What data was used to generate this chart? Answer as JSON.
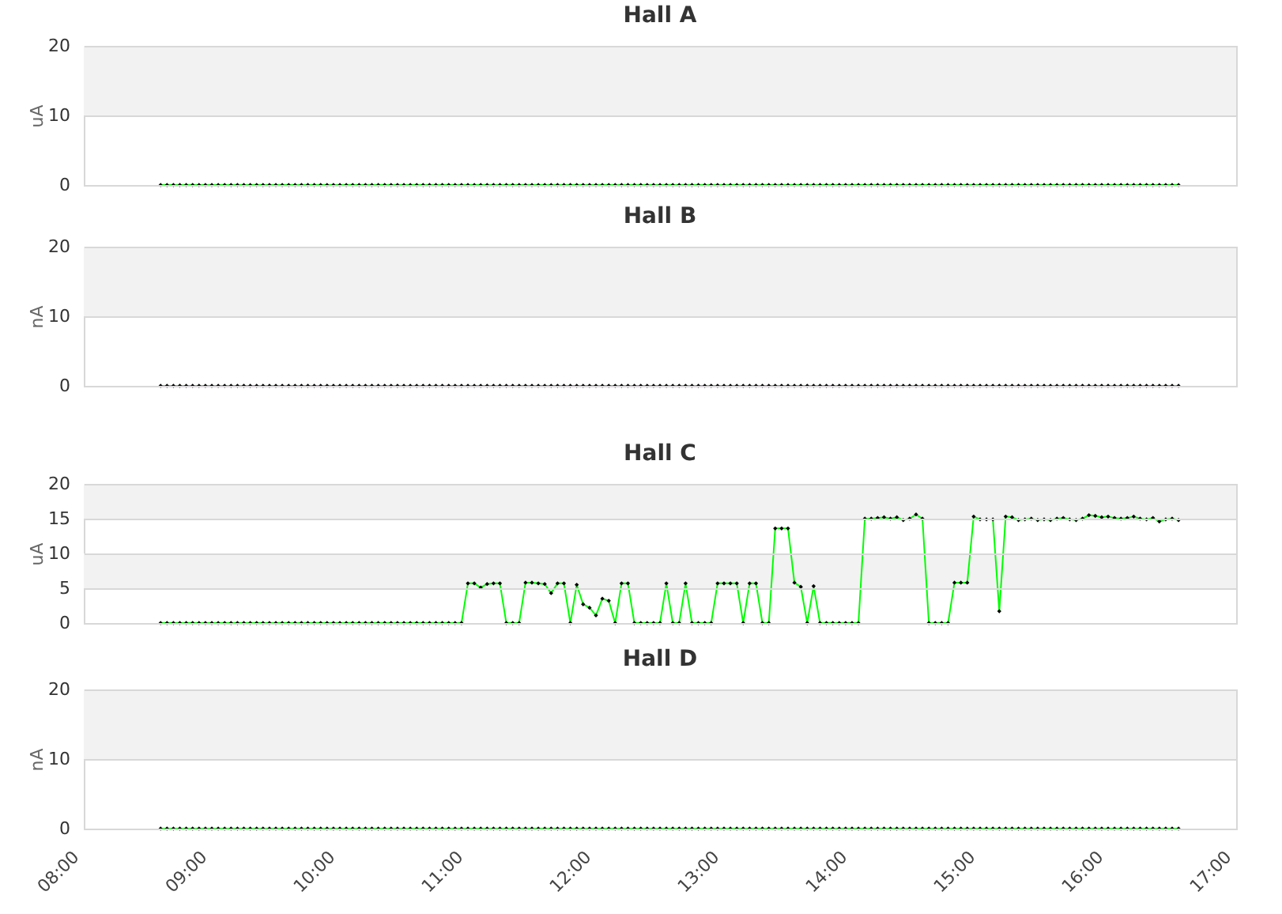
{
  "chart_data": [
    {
      "type": "line",
      "title": "Hall A",
      "ylabel": "uA",
      "xlim": [
        8,
        17
      ],
      "ylim": [
        0,
        20
      ],
      "yticks": [
        0,
        10,
        20
      ],
      "grid": "y",
      "tick_labels": "y",
      "marker": "diamond",
      "bands": [
        {
          "axis": "y",
          "from": 10,
          "to": 20,
          "color": "#f2f2f2"
        }
      ],
      "x": [
        8.6,
        8.65,
        8.7,
        8.75,
        8.8,
        8.85,
        8.9,
        8.95,
        9,
        9.05,
        9.1,
        9.15,
        9.2,
        9.25,
        9.3,
        9.35,
        9.4,
        9.45,
        9.5,
        9.55,
        9.6,
        9.65,
        9.7,
        9.75,
        9.8,
        9.85,
        9.9,
        9.95,
        10,
        10.05,
        10.1,
        10.15,
        10.2,
        10.25,
        10.3,
        10.35,
        10.4,
        10.45,
        10.5,
        10.55,
        10.6,
        10.65,
        10.7,
        10.75,
        10.8,
        10.85,
        10.9,
        10.95,
        11,
        11.05,
        11.1,
        11.15,
        11.2,
        11.25,
        11.3,
        11.35,
        11.4,
        11.45,
        11.5,
        11.55,
        11.6,
        11.65,
        11.7,
        11.75,
        11.8,
        11.85,
        11.9,
        11.95,
        12,
        12.05,
        12.1,
        12.15,
        12.2,
        12.25,
        12.3,
        12.35,
        12.4,
        12.45,
        12.5,
        12.55,
        12.6,
        12.65,
        12.7,
        12.75,
        12.8,
        12.85,
        12.9,
        12.95,
        13,
        13.05,
        13.1,
        13.15,
        13.2,
        13.25,
        13.3,
        13.35,
        13.4,
        13.45,
        13.5,
        13.55,
        13.6,
        13.65,
        13.7,
        13.75,
        13.8,
        13.85,
        13.9,
        13.95,
        14,
        14.05,
        14.1,
        14.15,
        14.2,
        14.25,
        14.3,
        14.35,
        14.4,
        14.45,
        14.5,
        14.55,
        14.6,
        14.65,
        14.7,
        14.75,
        14.8,
        14.85,
        14.9,
        14.95,
        15,
        15.05,
        15.1,
        15.15,
        15.2,
        15.25,
        15.3,
        15.35,
        15.4,
        15.45,
        15.5,
        15.55,
        15.6,
        15.65,
        15.7,
        15.75,
        15.8,
        15.85,
        15.9,
        15.95,
        16,
        16.05,
        16.1,
        16.15,
        16.2,
        16.25,
        16.3,
        16.35,
        16.4,
        16.45,
        16.5,
        16.55
      ],
      "series": [
        {
          "color": "#00ff00",
          "values": [
            0,
            0,
            0,
            0,
            0,
            0,
            0,
            0,
            0,
            0,
            0,
            0,
            0,
            0,
            0,
            0,
            0,
            0,
            0,
            0,
            0,
            0,
            0,
            0,
            0,
            0,
            0,
            0,
            0,
            0,
            0,
            0,
            0,
            0,
            0,
            0,
            0,
            0,
            0,
            0,
            0,
            0,
            0,
            0,
            0,
            0,
            0,
            0,
            0,
            0,
            0,
            0,
            0,
            0,
            0,
            0,
            0,
            0,
            0,
            0,
            0,
            0,
            0,
            0,
            0,
            0,
            0,
            0,
            0,
            0,
            0,
            0,
            0,
            0,
            0,
            0,
            0,
            0,
            0,
            0,
            0,
            0,
            0,
            0,
            0,
            0,
            0,
            0,
            0,
            0,
            0,
            0,
            0,
            0,
            0,
            0,
            0,
            0,
            0,
            0,
            0,
            0,
            0,
            0,
            0,
            0,
            0,
            0,
            0,
            0,
            0,
            0,
            0,
            0,
            0,
            0,
            0,
            0,
            0,
            0,
            0,
            0,
            0,
            0,
            0,
            0,
            0,
            0,
            0,
            0,
            0,
            0,
            0,
            0,
            0,
            0,
            0,
            0,
            0,
            0,
            0,
            0,
            0,
            0,
            0,
            0,
            0,
            0,
            0,
            0,
            0,
            0,
            0,
            0,
            0,
            0,
            0,
            0,
            0,
            0
          ]
        }
      ]
    },
    {
      "type": "line",
      "title": "Hall B",
      "ylabel": "nA",
      "xlim": [
        8,
        17
      ],
      "ylim": [
        0,
        20
      ],
      "yticks": [
        0,
        10,
        20
      ],
      "grid": "y",
      "tick_labels": "y",
      "marker": "diamond",
      "bands": [
        {
          "axis": "y",
          "from": 10,
          "to": 20,
          "color": "#f2f2f2"
        }
      ],
      "x": [
        8.6,
        8.65,
        8.7,
        8.75,
        8.8,
        8.85,
        8.9,
        8.95,
        9,
        9.05,
        9.1,
        9.15,
        9.2,
        9.25,
        9.3,
        9.35,
        9.4,
        9.45,
        9.5,
        9.55,
        9.6,
        9.65,
        9.7,
        9.75,
        9.8,
        9.85,
        9.9,
        9.95,
        10,
        10.05,
        10.1,
        10.15,
        10.2,
        10.25,
        10.3,
        10.35,
        10.4,
        10.45,
        10.5,
        10.55,
        10.6,
        10.65,
        10.7,
        10.75,
        10.8,
        10.85,
        10.9,
        10.95,
        11,
        11.05,
        11.1,
        11.15,
        11.2,
        11.25,
        11.3,
        11.35,
        11.4,
        11.45,
        11.5,
        11.55,
        11.6,
        11.65,
        11.7,
        11.75,
        11.8,
        11.85,
        11.9,
        11.95,
        12,
        12.05,
        12.1,
        12.15,
        12.2,
        12.25,
        12.3,
        12.35,
        12.4,
        12.45,
        12.5,
        12.55,
        12.6,
        12.65,
        12.7,
        12.75,
        12.8,
        12.85,
        12.9,
        12.95,
        13,
        13.05,
        13.1,
        13.15,
        13.2,
        13.25,
        13.3,
        13.35,
        13.4,
        13.45,
        13.5,
        13.55,
        13.6,
        13.65,
        13.7,
        13.75,
        13.8,
        13.85,
        13.9,
        13.95,
        14,
        14.05,
        14.1,
        14.15,
        14.2,
        14.25,
        14.3,
        14.35,
        14.4,
        14.45,
        14.5,
        14.55,
        14.6,
        14.65,
        14.7,
        14.75,
        14.8,
        14.85,
        14.9,
        14.95,
        15,
        15.05,
        15.1,
        15.15,
        15.2,
        15.25,
        15.3,
        15.35,
        15.4,
        15.45,
        15.5,
        15.55,
        15.6,
        15.65,
        15.7,
        15.75,
        15.8,
        15.85,
        15.9,
        15.95,
        16,
        16.05,
        16.1,
        16.15,
        16.2,
        16.25,
        16.3,
        16.35,
        16.4,
        16.45,
        16.5,
        16.55
      ],
      "series": [
        {
          "color": "#00ff00",
          "values": [
            0,
            0,
            0,
            0,
            0,
            0,
            0,
            0,
            0,
            0,
            0,
            0,
            0,
            0,
            0,
            0,
            0,
            0,
            0,
            0,
            0,
            0,
            0,
            0,
            0,
            0,
            0,
            0,
            0,
            0,
            0,
            0,
            0,
            0,
            0,
            0,
            0,
            0,
            0,
            0,
            0,
            0,
            0,
            0,
            0,
            0,
            0,
            0,
            0,
            0,
            0,
            0,
            0,
            0,
            0,
            0,
            0,
            0,
            0,
            0,
            0,
            0,
            0,
            0,
            0,
            0,
            0,
            0,
            0,
            0,
            0,
            0,
            0,
            0,
            0,
            0,
            0,
            0,
            0,
            0,
            0,
            0,
            0,
            0,
            0,
            0,
            0,
            0,
            0,
            0,
            0,
            0,
            0,
            0,
            0,
            0,
            0,
            0,
            0,
            0,
            0,
            0,
            0,
            0,
            0,
            0,
            0,
            0,
            0,
            0,
            0,
            0,
            0,
            0,
            0,
            0,
            0,
            0,
            0,
            0,
            0,
            0,
            0,
            0,
            0,
            0,
            0,
            0,
            0,
            0,
            0,
            0,
            0,
            0,
            0,
            0,
            0,
            0,
            0,
            0,
            0,
            0,
            0,
            0,
            0,
            0,
            0,
            0,
            0,
            0,
            0,
            0,
            0,
            0,
            0,
            0,
            0,
            0,
            0,
            0
          ]
        }
      ]
    },
    {
      "type": "line",
      "title": "Hall C",
      "ylabel": "uA",
      "xlim": [
        8,
        17
      ],
      "ylim": [
        0,
        20
      ],
      "yticks": [
        0,
        5,
        10,
        15,
        20
      ],
      "grid": "y",
      "tick_labels": "y",
      "marker": "diamond",
      "bands": [
        {
          "axis": "y",
          "from": 5,
          "to": 10,
          "color": "#f2f2f2"
        },
        {
          "axis": "y",
          "from": 15,
          "to": 20,
          "color": "#f2f2f2"
        }
      ],
      "x": [
        8.6,
        8.65,
        8.7,
        8.75,
        8.8,
        8.85,
        8.9,
        8.95,
        9,
        9.05,
        9.1,
        9.15,
        9.2,
        9.25,
        9.3,
        9.35,
        9.4,
        9.45,
        9.5,
        9.55,
        9.6,
        9.65,
        9.7,
        9.75,
        9.8,
        9.85,
        9.9,
        9.95,
        10,
        10.05,
        10.1,
        10.15,
        10.2,
        10.25,
        10.3,
        10.35,
        10.4,
        10.45,
        10.5,
        10.55,
        10.6,
        10.65,
        10.7,
        10.75,
        10.8,
        10.85,
        10.9,
        10.95,
        11,
        11.05,
        11.1,
        11.15,
        11.2,
        11.25,
        11.3,
        11.35,
        11.4,
        11.45,
        11.5,
        11.55,
        11.6,
        11.65,
        11.7,
        11.75,
        11.8,
        11.85,
        11.9,
        11.95,
        12,
        12.05,
        12.1,
        12.15,
        12.2,
        12.25,
        12.3,
        12.35,
        12.4,
        12.45,
        12.5,
        12.55,
        12.6,
        12.65,
        12.7,
        12.75,
        12.8,
        12.85,
        12.9,
        12.95,
        13,
        13.05,
        13.1,
        13.15,
        13.2,
        13.25,
        13.3,
        13.35,
        13.4,
        13.45,
        13.5,
        13.55,
        13.6,
        13.65,
        13.7,
        13.75,
        13.8,
        13.85,
        13.9,
        13.95,
        14,
        14.05,
        14.1,
        14.15,
        14.2,
        14.25,
        14.3,
        14.35,
        14.4,
        14.45,
        14.5,
        14.55,
        14.6,
        14.65,
        14.7,
        14.75,
        14.8,
        14.85,
        14.9,
        14.95,
        15,
        15.05,
        15.1,
        15.15,
        15.2,
        15.25,
        15.3,
        15.35,
        15.4,
        15.45,
        15.5,
        15.55,
        15.6,
        15.65,
        15.7,
        15.75,
        15.8,
        15.85,
        15.9,
        15.95,
        16,
        16.05,
        16.1,
        16.15,
        16.2,
        16.25,
        16.3,
        16.35,
        16.4,
        16.45,
        16.5,
        16.55
      ],
      "series": [
        {
          "color": "#00ff00",
          "values": [
            0,
            0,
            0,
            0,
            0,
            0,
            0,
            0,
            0,
            0,
            0,
            0,
            0,
            0,
            0,
            0,
            0,
            0,
            0,
            0,
            0,
            0,
            0,
            0,
            0,
            0,
            0,
            0,
            0,
            0,
            0,
            0,
            0,
            0,
            0,
            0,
            0,
            0,
            0,
            0,
            0,
            0,
            0,
            0,
            0,
            0,
            0,
            0,
            5.7,
            5.7,
            5.1,
            5.6,
            5.7,
            5.7,
            0,
            0,
            0,
            5.8,
            5.8,
            5.7,
            5.6,
            4.3,
            5.7,
            5.7,
            0,
            5.5,
            2.7,
            2.2,
            1.1,
            3.5,
            3.2,
            0,
            5.7,
            5.7,
            0,
            0,
            0,
            0,
            0,
            5.7,
            0,
            0,
            5.7,
            0,
            0,
            0,
            0,
            5.7,
            5.7,
            5.7,
            5.7,
            0,
            5.7,
            5.7,
            0,
            0,
            13.6,
            13.6,
            13.6,
            5.8,
            5.2,
            0,
            5.3,
            0,
            0,
            0,
            0,
            0,
            0,
            0,
            15.0,
            15.0,
            15.1,
            15.2,
            15.0,
            15.2,
            14.8,
            15.0,
            15.6,
            15.0,
            0,
            0,
            0,
            0,
            5.8,
            5.8,
            5.8,
            15.3,
            14.9,
            14.9,
            14.9,
            1.7,
            15.3,
            15.2,
            14.8,
            14.9,
            15.0,
            14.8,
            14.9,
            14.8,
            15.0,
            15.1,
            14.9,
            14.8,
            15.0,
            15.5,
            15.4,
            15.2,
            15.3,
            15.1,
            15.0,
            15.1,
            15.3,
            15.0,
            14.9,
            15.1,
            14.6,
            14.9,
            15.0,
            14.8
          ]
        }
      ]
    },
    {
      "type": "line",
      "title": "Hall D",
      "ylabel": "nA",
      "xlim": [
        8,
        17
      ],
      "ylim": [
        0,
        20
      ],
      "yticks": [
        0,
        10,
        20
      ],
      "grid": "y",
      "marker": "diamond",
      "xticks": [
        {
          "value": 8,
          "label": "08:00"
        },
        {
          "value": 9,
          "label": "09:00"
        },
        {
          "value": 10,
          "label": "10:00"
        },
        {
          "value": 11,
          "label": "11:00"
        },
        {
          "value": 12,
          "label": "12:00"
        },
        {
          "value": 13,
          "label": "13:00"
        },
        {
          "value": 14,
          "label": "14:00"
        },
        {
          "value": 15,
          "label": "15:00"
        },
        {
          "value": 16,
          "label": "16:00"
        },
        {
          "value": 17,
          "label": "17:00"
        }
      ],
      "bands": [
        {
          "axis": "y",
          "from": 10,
          "to": 20,
          "color": "#f2f2f2"
        }
      ],
      "x": [
        8.6,
        8.65,
        8.7,
        8.75,
        8.8,
        8.85,
        8.9,
        8.95,
        9,
        9.05,
        9.1,
        9.15,
        9.2,
        9.25,
        9.3,
        9.35,
        9.4,
        9.45,
        9.5,
        9.55,
        9.6,
        9.65,
        9.7,
        9.75,
        9.8,
        9.85,
        9.9,
        9.95,
        10,
        10.05,
        10.1,
        10.15,
        10.2,
        10.25,
        10.3,
        10.35,
        10.4,
        10.45,
        10.5,
        10.55,
        10.6,
        10.65,
        10.7,
        10.75,
        10.8,
        10.85,
        10.9,
        10.95,
        11,
        11.05,
        11.1,
        11.15,
        11.2,
        11.25,
        11.3,
        11.35,
        11.4,
        11.45,
        11.5,
        11.55,
        11.6,
        11.65,
        11.7,
        11.75,
        11.8,
        11.85,
        11.9,
        11.95,
        12,
        12.05,
        12.1,
        12.15,
        12.2,
        12.25,
        12.3,
        12.35,
        12.4,
        12.45,
        12.5,
        12.55,
        12.6,
        12.65,
        12.7,
        12.75,
        12.8,
        12.85,
        12.9,
        12.95,
        13,
        13.05,
        13.1,
        13.15,
        13.2,
        13.25,
        13.3,
        13.35,
        13.4,
        13.45,
        13.5,
        13.55,
        13.6,
        13.65,
        13.7,
        13.75,
        13.8,
        13.85,
        13.9,
        13.95,
        14,
        14.05,
        14.1,
        14.15,
        14.2,
        14.25,
        14.3,
        14.35,
        14.4,
        14.45,
        14.5,
        14.55,
        14.6,
        14.65,
        14.7,
        14.75,
        14.8,
        14.85,
        14.9,
        14.95,
        15,
        15.05,
        15.1,
        15.15,
        15.2,
        15.25,
        15.3,
        15.35,
        15.4,
        15.45,
        15.5,
        15.55,
        15.6,
        15.65,
        15.7,
        15.75,
        15.8,
        15.85,
        15.9,
        15.95,
        16,
        16.05,
        16.1,
        16.15,
        16.2,
        16.25,
        16.3,
        16.35,
        16.4,
        16.45,
        16.5,
        16.55
      ],
      "series": [
        {
          "color": "#00ff00",
          "values": [
            0,
            0,
            0,
            0,
            0,
            0,
            0,
            0,
            0,
            0,
            0,
            0,
            0,
            0,
            0,
            0,
            0,
            0,
            0,
            0,
            0,
            0,
            0,
            0,
            0,
            0,
            0,
            0,
            0,
            0,
            0,
            0,
            0,
            0,
            0,
            0,
            0,
            0,
            0,
            0,
            0,
            0,
            0,
            0,
            0,
            0,
            0,
            0,
            0,
            0,
            0,
            0,
            0,
            0,
            0,
            0,
            0,
            0,
            0,
            0,
            0,
            0,
            0,
            0,
            0,
            0,
            0,
            0,
            0,
            0,
            0,
            0,
            0,
            0,
            0,
            0,
            0,
            0,
            0,
            0,
            0,
            0,
            0,
            0,
            0,
            0,
            0,
            0,
            0,
            0,
            0,
            0,
            0,
            0,
            0,
            0,
            0,
            0,
            0,
            0,
            0,
            0,
            0,
            0,
            0,
            0,
            0,
            0,
            0,
            0,
            0,
            0,
            0,
            0,
            0,
            0,
            0,
            0,
            0,
            0,
            0,
            0,
            0,
            0,
            0,
            0,
            0,
            0,
            0,
            0,
            0,
            0,
            0,
            0,
            0,
            0,
            0,
            0,
            0,
            0,
            0,
            0,
            0,
            0,
            0,
            0,
            0,
            0,
            0,
            0,
            0,
            0,
            0,
            0,
            0,
            0,
            0,
            0,
            0,
            0
          ]
        }
      ]
    }
  ]
}
